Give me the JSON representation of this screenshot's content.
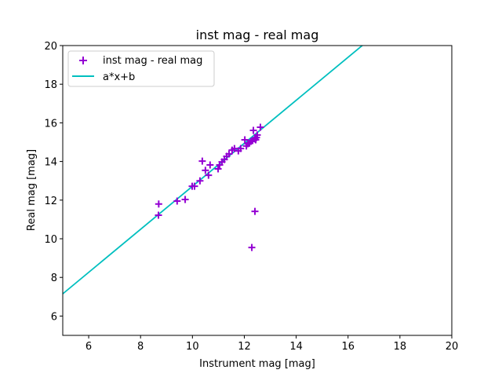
{
  "chart_data": {
    "type": "scatter",
    "title": "inst mag - real mag",
    "xlabel": "Instrument mag [mag]",
    "ylabel": "Real mag [mag]",
    "xlim": [
      5,
      20
    ],
    "ylim": [
      5,
      20
    ],
    "xticks": [
      6,
      8,
      10,
      12,
      14,
      16,
      18,
      20
    ],
    "yticks": [
      6,
      8,
      10,
      12,
      14,
      16,
      18,
      20
    ],
    "legend_position": "top-left",
    "series": [
      {
        "name": "inst mag - real mag",
        "kind": "scatter",
        "marker": "+",
        "color": "#9400d3",
        "points": [
          [
            8.7,
            11.8
          ],
          [
            8.69,
            11.22
          ],
          [
            9.41,
            11.95
          ],
          [
            9.72,
            12.03
          ],
          [
            9.99,
            12.72
          ],
          [
            10.08,
            12.72
          ],
          [
            10.29,
            13.0
          ],
          [
            10.38,
            14.02
          ],
          [
            10.5,
            13.54
          ],
          [
            10.62,
            13.29
          ],
          [
            10.68,
            13.82
          ],
          [
            10.99,
            13.62
          ],
          [
            11.05,
            13.82
          ],
          [
            11.14,
            13.98
          ],
          [
            11.23,
            14.1
          ],
          [
            11.32,
            14.27
          ],
          [
            11.41,
            14.39
          ],
          [
            11.53,
            14.59
          ],
          [
            11.62,
            14.67
          ],
          [
            11.77,
            14.55
          ],
          [
            11.86,
            14.67
          ],
          [
            12.02,
            15.12
          ],
          [
            12.08,
            14.8
          ],
          [
            12.14,
            14.92
          ],
          [
            12.2,
            14.96
          ],
          [
            12.26,
            15.04
          ],
          [
            12.35,
            15.61
          ],
          [
            12.41,
            15.17
          ],
          [
            12.47,
            15.24
          ],
          [
            12.5,
            15.37
          ],
          [
            12.62,
            15.77
          ],
          [
            12.32,
            15.08
          ],
          [
            12.44,
            15.12
          ],
          [
            12.29,
            9.55
          ],
          [
            12.41,
            11.42
          ]
        ]
      },
      {
        "name": "a*x+b",
        "kind": "line",
        "color": "#00bfbf",
        "a": 1.113,
        "b": 1.585
      }
    ]
  }
}
